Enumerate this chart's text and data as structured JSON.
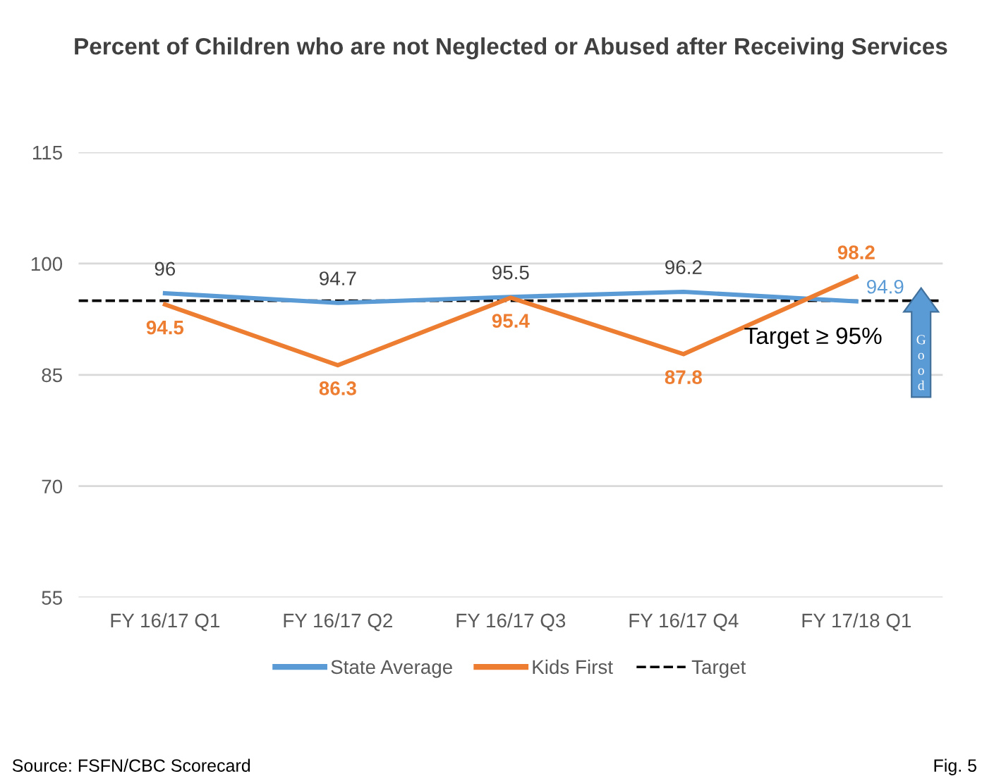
{
  "chart_data": {
    "type": "line",
    "title": "Percent of Children who are not Neglected or Abused after Receiving Services",
    "categories": [
      "FY 16/17 Q1",
      "FY 16/17 Q2",
      "FY 16/17 Q3",
      "FY 16/17 Q4",
      "FY 17/18 Q1"
    ],
    "series": [
      {
        "name": "State Average",
        "color": "#5b9bd5",
        "values": [
          96,
          94.7,
          95.5,
          96.2,
          94.9
        ]
      },
      {
        "name": "Kids First",
        "color": "#ed7d31",
        "values": [
          94.5,
          86.3,
          95.4,
          87.8,
          98.2
        ]
      }
    ],
    "ref_lines": [
      {
        "axis": "y",
        "value": 95,
        "label": "Target",
        "color": "#000000",
        "line_style": "dashed"
      }
    ],
    "ylim": [
      55,
      115
    ],
    "yticks": [
      55,
      70,
      85,
      100,
      115
    ],
    "grid": "y",
    "legend": "bottom",
    "marker": "none",
    "line_style": "solid",
    "data_labels": true,
    "annotations": [
      "Target ≥ 95%",
      "Good",
      "Source: FSFN/CBC Scorecard",
      "Fig. 5"
    ]
  }
}
